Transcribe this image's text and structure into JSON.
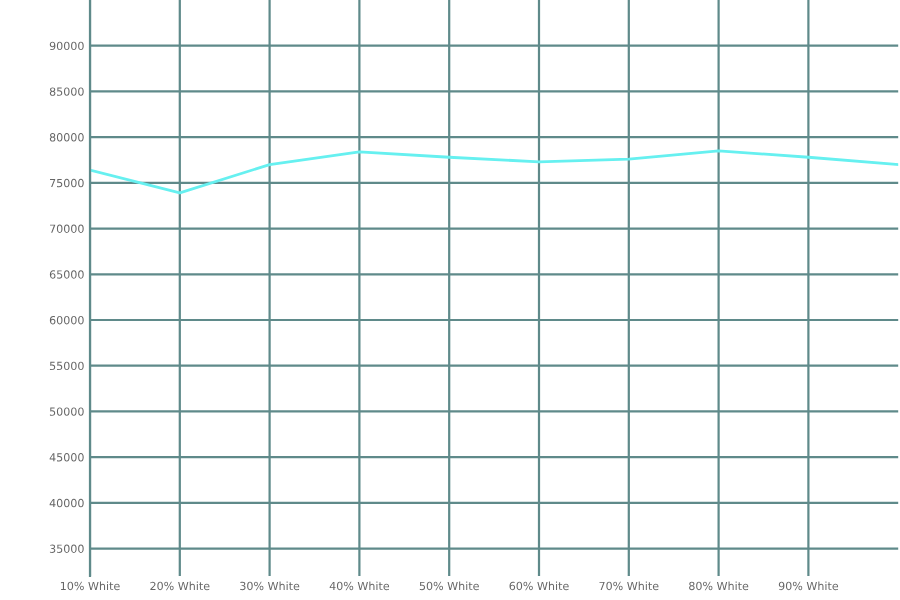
{
  "chart_data": {
    "type": "line",
    "x": [
      10,
      20,
      30,
      40,
      50,
      60,
      70,
      80,
      90,
      100
    ],
    "series": [
      {
        "color": "#66f0f0",
        "values": [
          76400,
          73900,
          77000,
          78400,
          77800,
          77300,
          77600,
          78500,
          77800,
          77000
        ]
      }
    ],
    "xlim": [
      10,
      100
    ],
    "xticks": [
      {
        "value": 10,
        "label": "10% White"
      },
      {
        "value": 20,
        "label": "20% White"
      },
      {
        "value": 30,
        "label": "30% White"
      },
      {
        "value": 40,
        "label": "40% White"
      },
      {
        "value": 50,
        "label": "50% White"
      },
      {
        "value": 60,
        "label": "60% White"
      },
      {
        "value": 70,
        "label": "70% White"
      },
      {
        "value": 80,
        "label": "80% White"
      },
      {
        "value": 90,
        "label": "90% White"
      }
    ],
    "ylim": [
      32000,
      95000
    ],
    "yticks": [
      35000,
      40000,
      45000,
      50000,
      55000,
      60000,
      65000,
      70000,
      75000,
      80000,
      85000,
      90000
    ],
    "grid": true,
    "line_style": "solid",
    "marker": "none"
  }
}
